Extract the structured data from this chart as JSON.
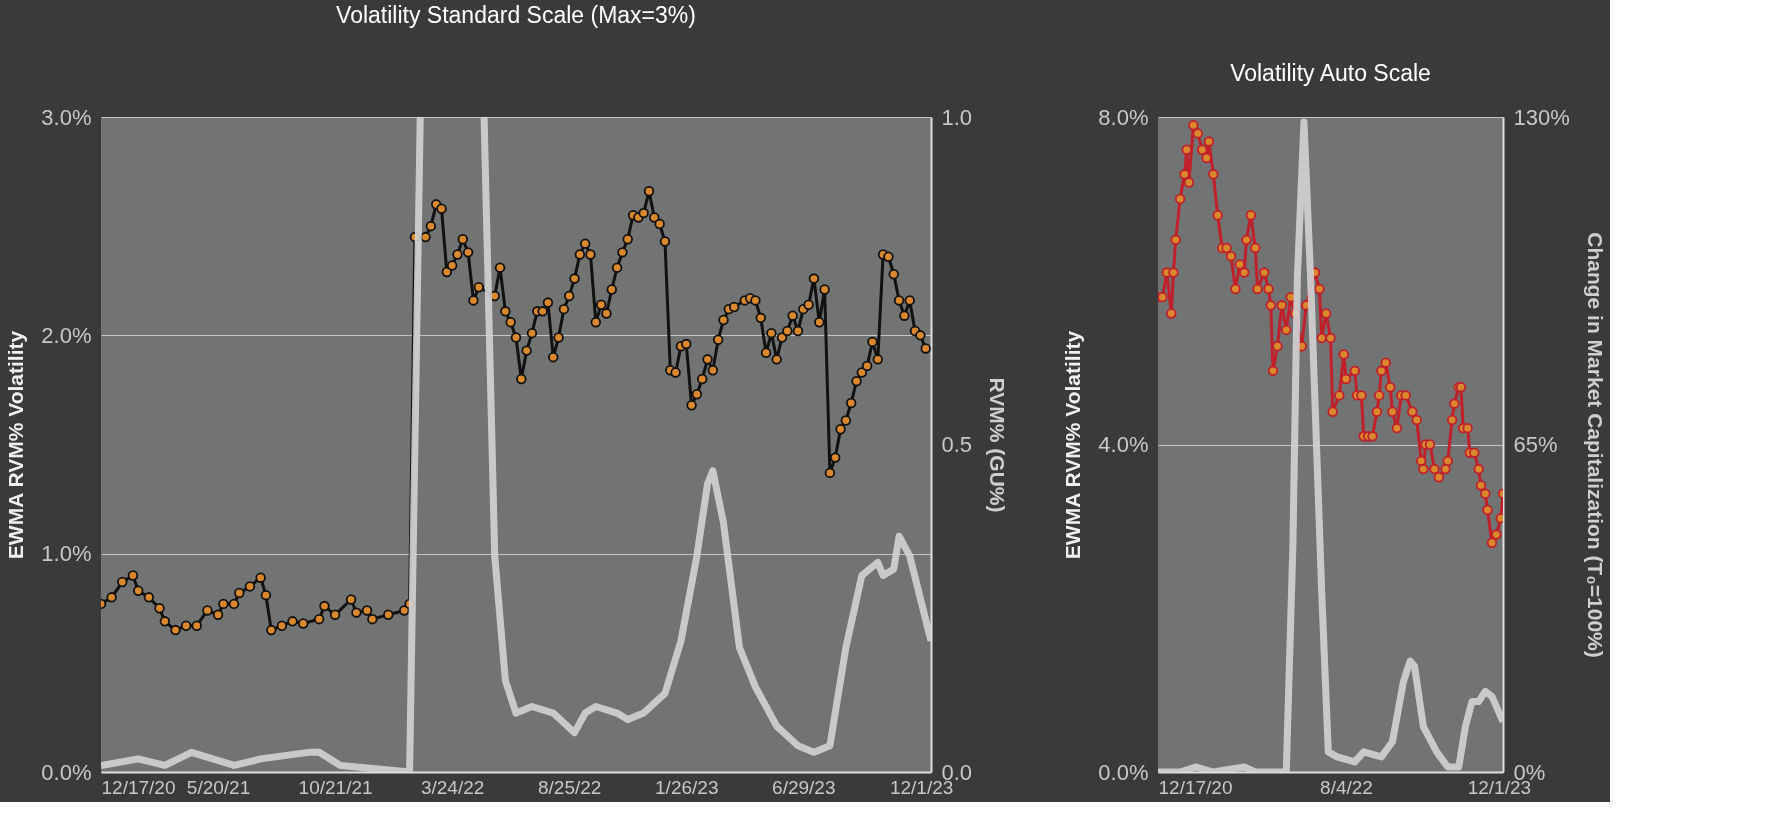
{
  "chart_data": [
    {
      "type": "line",
      "title": "Volatility Standard Scale (Max=3%)",
      "ylabel": "EWMA RVM% Volatility",
      "y2label": "RVM% (GU%)",
      "xlim": [
        "2020-12-17",
        "2023-12-14"
      ],
      "xticks": [
        {
          "value": "2020-12-17",
          "label": "12/17/20"
        },
        {
          "value": "2021-05-20",
          "label": "5/20/21"
        },
        {
          "value": "2021-10-21",
          "label": "10/21/21"
        },
        {
          "value": "2022-03-24",
          "label": "3/24/22"
        },
        {
          "value": "2022-08-25",
          "label": "8/25/22"
        },
        {
          "value": "2023-01-26",
          "label": "1/26/23"
        },
        {
          "value": "2023-06-29",
          "label": "6/29/23"
        },
        {
          "value": "2023-12-01",
          "label": "12/1/23"
        }
      ],
      "ylim": [
        0,
        3
      ],
      "yticks": [
        {
          "value": 0,
          "label": "0.0%"
        },
        {
          "value": 1,
          "label": "1.0%"
        },
        {
          "value": 2,
          "label": "2.0%"
        },
        {
          "value": 3,
          "label": "3.0%"
        }
      ],
      "y2lim": [
        0,
        1
      ],
      "y2ticks": [
        {
          "value": 0,
          "label": "0.0"
        },
        {
          "value": 0.5,
          "label": "0.5"
        },
        {
          "value": 1,
          "label": "1.0"
        }
      ],
      "grid": "y",
      "series": [
        {
          "color": "#111111",
          "marker": "circle",
          "line_style": "solid",
          "x": [
            "2020-12-17",
            "2020-12-31",
            "2021-01-14",
            "2021-01-28",
            "2021-02-04",
            "2021-02-18",
            "2021-03-04",
            "2021-03-11",
            "2021-03-25",
            "2021-04-08",
            "2021-04-22",
            "2021-05-06",
            "2021-05-20",
            "2021-05-27",
            "2021-06-10",
            "2021-06-17",
            "2021-07-01",
            "2021-07-15",
            "2021-07-22",
            "2021-07-29",
            "2021-08-12",
            "2021-08-26",
            "2021-09-09",
            "2021-09-30",
            "2021-10-07",
            "2021-10-21",
            "2021-11-11",
            "2021-11-18",
            "2021-12-02",
            "2021-12-09",
            "2021-12-30",
            "2022-01-20",
            "2022-01-27",
            "2022-02-03",
            "2022-02-17",
            "2022-02-24",
            "2022-03-03",
            "2022-03-10",
            "2022-03-17",
            "2022-03-24",
            "2022-03-31",
            "2022-04-07",
            "2022-04-14",
            "2022-04-21",
            "2022-04-28",
            "2022-05-19",
            "2022-05-26",
            "2022-06-02",
            "2022-06-09",
            "2022-06-16",
            "2022-06-23",
            "2022-06-30",
            "2022-07-07",
            "2022-07-14",
            "2022-07-21",
            "2022-07-28",
            "2022-08-04",
            "2022-08-11",
            "2022-08-18",
            "2022-08-25",
            "2022-09-01",
            "2022-09-08",
            "2022-09-15",
            "2022-09-22",
            "2022-09-29",
            "2022-10-06",
            "2022-10-13",
            "2022-10-20",
            "2022-10-27",
            "2022-11-03",
            "2022-11-10",
            "2022-11-17",
            "2022-11-24",
            "2022-12-01",
            "2022-12-08",
            "2022-12-15",
            "2022-12-22",
            "2022-12-29",
            "2023-01-05",
            "2023-01-12",
            "2023-01-19",
            "2023-01-26",
            "2023-02-02",
            "2023-02-09",
            "2023-02-16",
            "2023-02-23",
            "2023-03-02",
            "2023-03-09",
            "2023-03-16",
            "2023-03-23",
            "2023-03-30",
            "2023-04-13",
            "2023-04-20",
            "2023-04-27",
            "2023-05-04",
            "2023-05-11",
            "2023-05-18",
            "2023-05-25",
            "2023-06-01",
            "2023-06-08",
            "2023-06-15",
            "2023-06-22",
            "2023-06-29",
            "2023-07-06",
            "2023-07-13",
            "2023-07-20",
            "2023-07-27",
            "2023-08-03",
            "2023-08-10",
            "2023-08-17",
            "2023-08-24",
            "2023-08-31",
            "2023-09-07",
            "2023-09-14",
            "2023-09-21",
            "2023-09-28",
            "2023-10-05",
            "2023-10-12",
            "2023-10-19",
            "2023-10-26",
            "2023-11-02",
            "2023-11-09",
            "2023-11-16",
            "2023-11-23",
            "2023-11-30",
            "2023-12-07"
          ],
          "values": [
            0.77,
            0.8,
            0.87,
            0.9,
            0.83,
            0.8,
            0.75,
            0.69,
            0.65,
            0.67,
            0.67,
            0.74,
            0.72,
            0.77,
            0.77,
            0.82,
            0.85,
            0.89,
            0.81,
            0.65,
            0.67,
            0.69,
            0.68,
            0.7,
            0.76,
            0.72,
            0.79,
            0.73,
            0.74,
            0.7,
            0.72,
            0.74,
            0.77,
            2.45,
            2.45,
            2.5,
            2.6,
            2.58,
            2.29,
            2.32,
            2.37,
            2.44,
            2.38,
            2.16,
            2.22,
            2.18,
            2.31,
            2.11,
            2.06,
            1.99,
            1.8,
            1.93,
            2.01,
            2.11,
            2.11,
            2.15,
            1.9,
            1.99,
            2.12,
            2.18,
            2.26,
            2.37,
            2.42,
            2.37,
            2.06,
            2.14,
            2.1,
            2.21,
            2.31,
            2.38,
            2.44,
            2.55,
            2.54,
            2.56,
            2.66,
            2.54,
            2.51,
            2.43,
            1.84,
            1.83,
            1.95,
            1.96,
            1.68,
            1.73,
            1.8,
            1.89,
            1.84,
            1.98,
            2.07,
            2.12,
            2.13,
            2.16,
            2.17,
            2.16,
            2.08,
            1.92,
            2.01,
            1.89,
            1.99,
            2.02,
            2.09,
            2.02,
            2.12,
            2.14,
            2.26,
            2.06,
            2.21,
            1.37,
            1.44,
            1.57,
            1.61,
            1.69,
            1.79,
            1.83,
            1.86,
            1.97,
            1.89,
            2.37,
            2.36,
            2.28,
            2.16,
            2.09,
            2.16,
            2.02,
            2.0,
            1.94
          ]
        },
        {
          "color": "#d3d3d3",
          "axis": "y2",
          "line_style": "solid",
          "x": [
            "2020-12-17",
            "2021-02-04",
            "2021-03-11",
            "2021-04-15",
            "2021-06-10",
            "2021-07-15",
            "2021-09-16",
            "2021-09-30",
            "2021-10-28",
            "2022-01-27",
            "2022-02-10",
            "2022-03-24",
            "2022-05-05",
            "2022-05-19",
            "2022-06-02",
            "2022-06-16",
            "2022-07-07",
            "2022-08-04",
            "2022-09-01",
            "2022-09-15",
            "2022-09-29",
            "2022-10-27",
            "2022-11-10",
            "2022-12-01",
            "2022-12-29",
            "2023-01-19",
            "2023-02-09",
            "2023-02-23",
            "2023-03-02",
            "2023-03-16",
            "2023-04-06",
            "2023-04-27",
            "2023-05-25",
            "2023-06-22",
            "2023-07-13",
            "2023-08-03",
            "2023-08-24",
            "2023-09-14",
            "2023-10-05",
            "2023-10-12",
            "2023-10-26",
            "2023-11-02",
            "2023-11-16",
            "2023-12-14"
          ],
          "values": [
            0.01,
            0.02,
            0.01,
            0.03,
            0.01,
            0.02,
            0.03,
            0.03,
            0.01,
            0.0,
            1.0,
            null,
            1.0,
            0.33,
            0.14,
            0.09,
            0.1,
            0.09,
            0.06,
            0.09,
            0.1,
            0.09,
            0.08,
            0.09,
            0.12,
            0.2,
            0.33,
            0.44,
            0.46,
            0.38,
            0.19,
            0.13,
            0.07,
            0.04,
            0.03,
            0.04,
            0.19,
            0.3,
            0.32,
            0.3,
            0.31,
            0.36,
            0.33,
            0.2
          ]
        }
      ]
    },
    {
      "type": "line",
      "title": "Volatility Auto Scale",
      "ylabel": "EWMA RVM% Volatility",
      "y2label": "Change in Market Capitalization (T₀=100%)",
      "xlim": [
        "2020-12-17",
        "2023-12-14"
      ],
      "xticks": [
        {
          "value": "2020-12-17",
          "label": "12/17/20"
        },
        {
          "value": "2022-08-04",
          "label": "8/4/22"
        },
        {
          "value": "2023-12-01",
          "label": "12/1/23"
        }
      ],
      "ylim": [
        0,
        8
      ],
      "yticks": [
        {
          "value": 0,
          "label": "0.0%"
        },
        {
          "value": 4,
          "label": "4.0%"
        },
        {
          "value": 8,
          "label": "8.0%"
        }
      ],
      "y2lim": [
        0,
        130
      ],
      "y2ticks": [
        {
          "value": 0,
          "label": "0%"
        },
        {
          "value": 65,
          "label": "65%"
        },
        {
          "value": 130,
          "label": "130%"
        }
      ],
      "grid": "y",
      "series": [
        {
          "color": "#c0202a",
          "marker": "circle",
          "line_style": "solid",
          "x": [
            "2020-12-17",
            "2020-12-31",
            "2021-01-14",
            "2021-01-28",
            "2021-02-04",
            "2021-02-11",
            "2021-02-25",
            "2021-03-11",
            "2021-03-18",
            "2021-03-25",
            "2021-04-08",
            "2021-04-22",
            "2021-05-06",
            "2021-05-20",
            "2021-05-27",
            "2021-06-10",
            "2021-06-24",
            "2021-07-08",
            "2021-07-22",
            "2021-08-05",
            "2021-08-19",
            "2021-09-02",
            "2021-09-16",
            "2021-09-23",
            "2021-10-07",
            "2021-10-21",
            "2021-10-28",
            "2021-11-18",
            "2021-12-02",
            "2021-12-09",
            "2021-12-16",
            "2021-12-30",
            "2022-01-13",
            "2022-01-27",
            "2022-02-10",
            "2022-02-24",
            "2022-03-17",
            "2022-03-31",
            "2022-04-28",
            "2022-05-12",
            "2022-05-19",
            "2022-06-02",
            "2022-06-16",
            "2022-06-23",
            "2022-07-14",
            "2022-07-28",
            "2022-08-04",
            "2022-09-01",
            "2022-09-08",
            "2022-09-22",
            "2022-09-29",
            "2022-10-13",
            "2022-10-27",
            "2022-11-10",
            "2022-11-17",
            "2022-11-24",
            "2022-12-08",
            "2022-12-22",
            "2022-12-29",
            "2023-01-12",
            "2023-01-26",
            "2023-02-09",
            "2023-03-02",
            "2023-03-16",
            "2023-03-30",
            "2023-04-06",
            "2023-04-13",
            "2023-04-27",
            "2023-05-11",
            "2023-05-25",
            "2023-06-15",
            "2023-06-22",
            "2023-07-06",
            "2023-07-13",
            "2023-07-27",
            "2023-08-03",
            "2023-08-10",
            "2023-08-24",
            "2023-08-31",
            "2023-09-14",
            "2023-09-28",
            "2023-10-05",
            "2023-10-19",
            "2023-10-26",
            "2023-11-09",
            "2023-11-23",
            "2023-12-07",
            "2023-12-14"
          ],
          "values": [
            5.8,
            5.8,
            6.1,
            5.6,
            6.1,
            6.5,
            7.0,
            7.3,
            7.6,
            7.2,
            7.9,
            7.8,
            7.6,
            7.5,
            7.7,
            7.3,
            6.8,
            6.4,
            6.4,
            6.3,
            5.9,
            6.2,
            6.1,
            6.5,
            6.8,
            6.4,
            5.9,
            6.1,
            5.9,
            5.7,
            4.9,
            5.2,
            5.7,
            5.4,
            5.8,
            5.6,
            5.2,
            5.7,
            6.1,
            5.9,
            5.3,
            5.6,
            5.3,
            4.4,
            4.6,
            5.1,
            4.8,
            4.9,
            4.6,
            4.6,
            4.1,
            4.1,
            4.1,
            4.4,
            4.6,
            4.9,
            5.0,
            4.7,
            4.4,
            4.2,
            4.6,
            4.6,
            4.4,
            4.3,
            3.8,
            3.7,
            4.0,
            4.0,
            3.7,
            3.6,
            3.7,
            3.8,
            4.3,
            4.5,
            4.7,
            4.7,
            4.2,
            4.2,
            3.9,
            3.9,
            3.7,
            3.5,
            3.4,
            3.2,
            2.8,
            2.9,
            3.1,
            3.4
          ]
        },
        {
          "color": "#d3d3d3",
          "axis": "y2",
          "line_style": "solid",
          "x": [
            "2020-12-17",
            "2021-02-25",
            "2021-04-15",
            "2021-06-10",
            "2021-09-16",
            "2021-10-21",
            "2022-01-27",
            "2022-02-17",
            "2022-03-03",
            "2022-03-24",
            "2022-04-14",
            "2022-05-19",
            "2022-06-09",
            "2022-07-07",
            "2022-09-01",
            "2022-09-29",
            "2022-11-24",
            "2022-12-29",
            "2023-02-02",
            "2023-02-23",
            "2023-03-09",
            "2023-04-06",
            "2023-05-18",
            "2023-06-22",
            "2023-07-27",
            "2023-08-17",
            "2023-09-07",
            "2023-09-28",
            "2023-10-19",
            "2023-11-09",
            "2023-12-14"
          ],
          "values": [
            0,
            0,
            1,
            0,
            1,
            0,
            0,
            45,
            98,
            129,
            98,
            36,
            4,
            3,
            2,
            4,
            3,
            6,
            18,
            22,
            21,
            9,
            4,
            1,
            1,
            9,
            14,
            14,
            16,
            15,
            10
          ]
        }
      ]
    }
  ]
}
